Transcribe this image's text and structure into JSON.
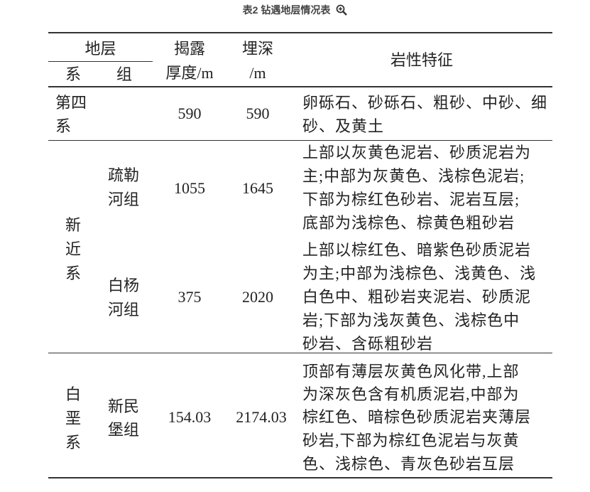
{
  "title": "表2 钻遇地层情况表",
  "zoom_icon": "zoom-in-icon",
  "header": {
    "strata": "地层",
    "system": "系",
    "group": "组",
    "thickness_1": "揭露",
    "thickness_2": "厚度/m",
    "depth_1": "埋深",
    "depth_2": "/m",
    "lithology": "岩性特征"
  },
  "rows": [
    {
      "system": "第四系",
      "system_lines": [
        "第四",
        "系"
      ],
      "group_lines": [],
      "thickness": "590",
      "depth": "590",
      "lithology_lines": [
        "卵砾石、砂砾石、粗砂、中砂、细",
        "砂、及黄土"
      ]
    },
    {
      "system": "新近系",
      "system_lines": [
        "新",
        "近",
        "系"
      ],
      "group_lines": [
        "疏勒",
        "河组"
      ],
      "thickness": "1055",
      "depth": "1645",
      "lithology_lines": [
        "上部以灰黄色泥岩、砂质泥岩为",
        "主;中部为灰黄色、浅棕色泥岩;",
        "下部为棕红色砂岩、泥岩互层;",
        "底部为浅棕色、棕黄色粗砂岩"
      ]
    },
    {
      "system": "新近系",
      "group_lines": [
        "白杨",
        "河组"
      ],
      "thickness": "375",
      "depth": "2020",
      "lithology_lines": [
        "上部以棕红色、暗紫色砂质泥岩",
        "为主;中部为浅棕色、浅黄色、浅",
        "白色中、粗砂岩夹泥岩、砂质泥",
        "岩;下部为浅灰黄色、浅棕色中",
        "砂岩、含砾粗砂岩"
      ]
    },
    {
      "system": "白垩系",
      "system_lines": [
        "白",
        "垩",
        "系"
      ],
      "group_lines": [
        "新民",
        "堡组"
      ],
      "thickness": "154.03",
      "depth": "2174.03",
      "lithology_lines": [
        "顶部有薄层灰黄色风化带,上部",
        "为深灰色含有机质泥岩,中部为",
        "棕红色、暗棕色砂质泥岩夹薄层",
        "砂岩,下部为棕红色泥岩与灰黄",
        "色、浅棕色、青灰色砂岩互层"
      ]
    }
  ]
}
